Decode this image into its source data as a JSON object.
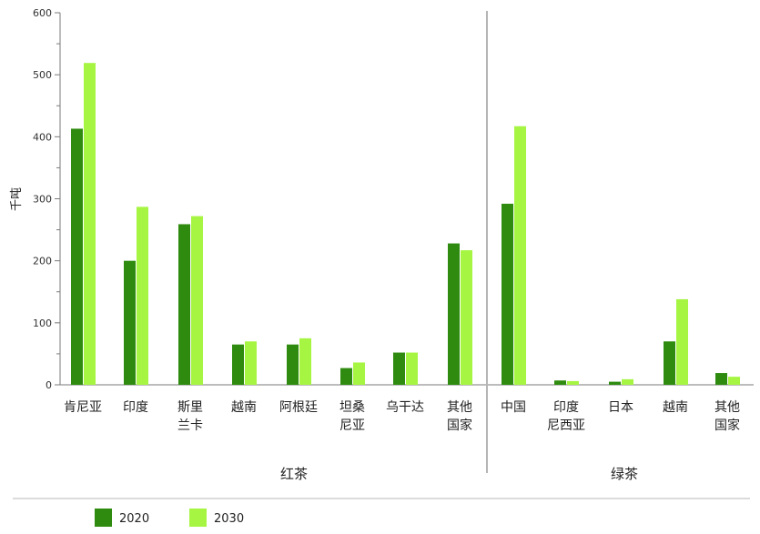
{
  "chart_data": {
    "type": "bar",
    "ylabel": "千吨",
    "ylim": [
      0,
      600
    ],
    "yticks": [
      "0",
      "100",
      "200",
      "300",
      "400",
      "500",
      "600"
    ],
    "groups": [
      {
        "name": "红茶",
        "categories": [
          [
            "肯尼亚"
          ],
          [
            "印度"
          ],
          [
            "斯里",
            "兰卡"
          ],
          [
            "越南"
          ],
          [
            "阿根廷"
          ],
          [
            "坦桑",
            "尼亚"
          ],
          [
            "乌干达"
          ],
          [
            "其他",
            "国家"
          ]
        ],
        "values_2020": [
          413,
          200,
          259,
          65,
          65,
          27,
          52,
          228
        ],
        "values_2030": [
          519,
          287,
          272,
          70,
          75,
          36,
          52,
          217
        ]
      },
      {
        "name": "绿茶",
        "categories": [
          [
            "中国"
          ],
          [
            "印度",
            "尼西亚"
          ],
          [
            "日本"
          ],
          [
            "越南"
          ],
          [
            "其他",
            "国家"
          ]
        ],
        "values_2020": [
          292,
          7,
          5,
          70,
          19
        ],
        "values_2030": [
          417,
          6,
          9,
          138,
          13
        ]
      }
    ],
    "series": [
      {
        "name": "2020",
        "color": "#2e8b0f"
      },
      {
        "name": "2030",
        "color": "#a6f542"
      }
    ],
    "grid": false,
    "legend_position": "bottom-left"
  }
}
